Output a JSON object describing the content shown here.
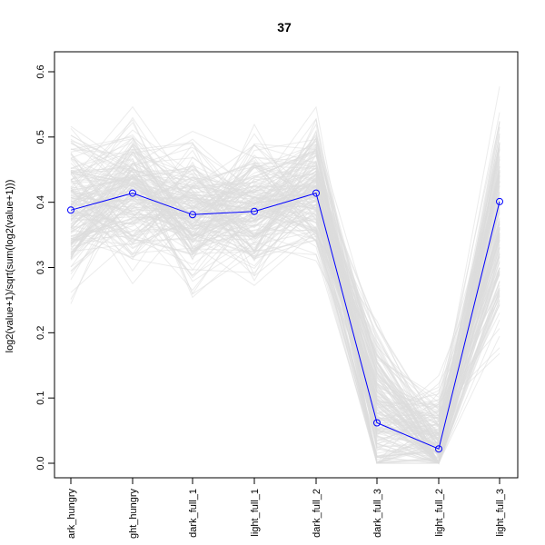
{
  "chart_data": {
    "type": "line",
    "title": "37",
    "xlabel": "",
    "ylabel": "log2(value+1)/sqrt(sum(log2(value+1)))",
    "categories": [
      "dark_hungry",
      "light_hungry",
      "dark_full_1",
      "light_full_1",
      "dark_full_2",
      "dark_full_3",
      "light_full_2",
      "light_full_3"
    ],
    "category_labels": [
      "ark_hungry",
      "ght_hungry",
      "dark_full_1",
      "light_full_1",
      "dark_full_2",
      "dark_full_3",
      "light_full_2",
      "light_full_3"
    ],
    "ylim": [
      0,
      0.6
    ],
    "yticks": [
      "0.0",
      "0.1",
      "0.2",
      "0.3",
      "0.4",
      "0.5",
      "0.6"
    ],
    "highlight": {
      "values": [
        0.388,
        0.414,
        0.381,
        0.386,
        0.414,
        0.062,
        0.022,
        0.401
      ],
      "color": "#0000ff",
      "marker": "open-circle"
    },
    "background": {
      "color": "#dcdcdc",
      "count": 180,
      "mean": [
        0.39,
        0.41,
        0.385,
        0.39,
        0.42,
        0.08,
        0.03,
        0.38
      ],
      "spread": [
        0.055,
        0.055,
        0.05,
        0.05,
        0.05,
        0.06,
        0.04,
        0.08
      ],
      "min": [
        0.17,
        0.27,
        0.16,
        0.18,
        0.24,
        0.0,
        0.0,
        0.15
      ],
      "max": [
        0.56,
        0.58,
        0.51,
        0.53,
        0.6,
        0.33,
        0.28,
        0.59
      ]
    },
    "grid": false,
    "legend": "none"
  }
}
